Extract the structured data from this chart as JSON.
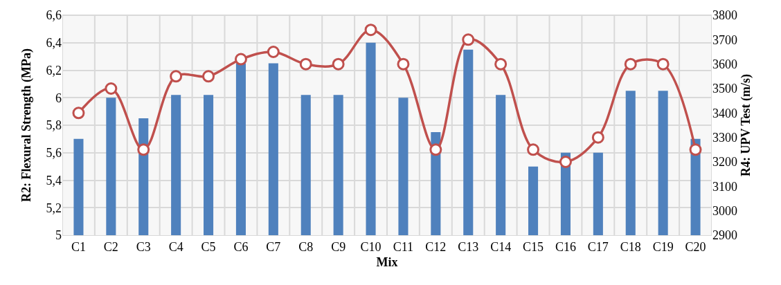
{
  "chart_data": {
    "type": "bar",
    "xlabel": "Mix",
    "ylabel": "R2: Flexural Strength (MPa)",
    "y2label": "R4: UPV Test (m/s)",
    "categories": [
      "C1",
      "C2",
      "C3",
      "C4",
      "C5",
      "C6",
      "C7",
      "C8",
      "C9",
      "C10",
      "C11",
      "C12",
      "C13",
      "C14",
      "C15",
      "C16",
      "C17",
      "C18",
      "C19",
      "C20"
    ],
    "series": [
      {
        "color": "#4f81bd",
        "values": [
          5.7,
          6.0,
          5.85,
          6.02,
          6.02,
          6.25,
          6.25,
          6.02,
          6.02,
          6.4,
          6.0,
          5.75,
          6.35,
          6.02,
          5.5,
          5.6,
          5.6,
          6.05,
          6.05,
          5.7
        ]
      },
      {
        "type": "line",
        "axis": "y2",
        "color": "#c0504d",
        "marker": "circle",
        "values": [
          3400,
          3500,
          3250,
          3550,
          3550,
          3620,
          3650,
          3600,
          3600,
          3740,
          3600,
          3250,
          3700,
          3600,
          3250,
          3200,
          3300,
          3600,
          3600,
          3250
        ]
      }
    ],
    "ylim": [
      5,
      6.6
    ],
    "yticks": [
      5,
      {
        "value": 5.2,
        "label": "5,2"
      },
      {
        "value": 5.4,
        "label": "5,4"
      },
      {
        "value": 5.6,
        "label": "5,6"
      },
      {
        "value": 5.8,
        "label": "5,8"
      },
      6,
      {
        "value": 6.2,
        "label": "6,2"
      },
      {
        "value": 6.4,
        "label": "6,4"
      },
      {
        "value": 6.6,
        "label": "6,6"
      }
    ],
    "y2lim": [
      2900,
      3800
    ],
    "y2ticks": [
      2900,
      3000,
      3100,
      3200,
      3300,
      3400,
      3500,
      3600,
      3700,
      3800
    ],
    "grid": true
  }
}
